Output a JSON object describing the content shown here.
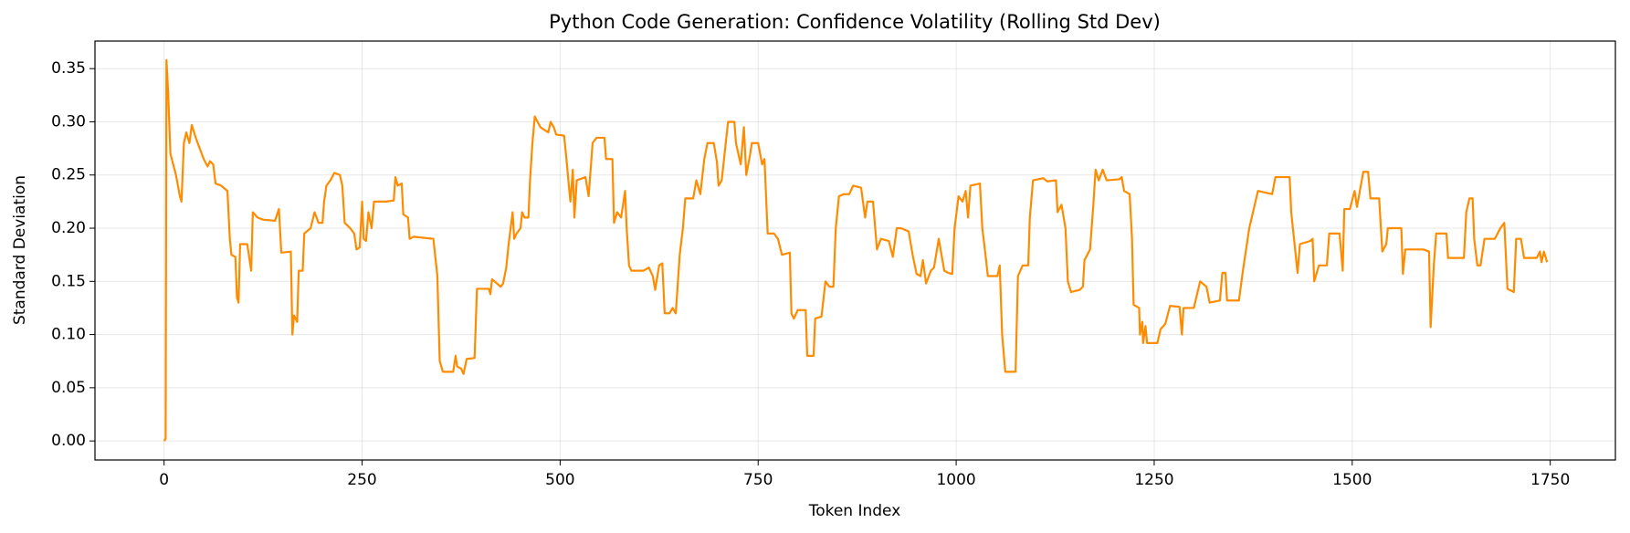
{
  "chart_data": {
    "type": "line",
    "title": "Python Code Generation: Confidence Volatility (Rolling Std Dev)",
    "x_label": "Token Index",
    "y_label": "Standard Deviation",
    "color": "#ff8c00",
    "grid": true,
    "xlim": [
      -87.25,
      1832.25
    ],
    "ylim": [
      -0.0179,
      0.3759
    ],
    "xticks": [
      0,
      250,
      500,
      750,
      1000,
      1250,
      1500,
      1750
    ],
    "yticks": [
      {
        "value": 0,
        "label": "0.00"
      },
      0.05,
      {
        "value": 0.1,
        "label": "0.10"
      },
      0.15,
      {
        "value": 0.2,
        "label": "0.20"
      },
      0.25,
      {
        "value": 0.3,
        "label": "0.30"
      },
      0.35
    ],
    "x": [
      0,
      2,
      3,
      5,
      8,
      15,
      20,
      22,
      25,
      28,
      32,
      35,
      40,
      45,
      50,
      55,
      58,
      62,
      65,
      72,
      80,
      83,
      85,
      90,
      92,
      94,
      96,
      105,
      110,
      112,
      118,
      125,
      140,
      145,
      148,
      160,
      162,
      164,
      168,
      170,
      175,
      177,
      185,
      190,
      195,
      200,
      202,
      205,
      210,
      215,
      222,
      225,
      228,
      235,
      240,
      243,
      247,
      250,
      252,
      255,
      258,
      262,
      265,
      280,
      290,
      292,
      295,
      300,
      302,
      308,
      310,
      315,
      340,
      345,
      348,
      352,
      365,
      368,
      370,
      375,
      378,
      382,
      392,
      395,
      410,
      412,
      414,
      425,
      428,
      432,
      435,
      440,
      442,
      445,
      450,
      452,
      455,
      460,
      462,
      465,
      468,
      475,
      485,
      488,
      492,
      495,
      505,
      508,
      511,
      513,
      516,
      518,
      521,
      532,
      536,
      541,
      546,
      556,
      558,
      566,
      568,
      572,
      577,
      582,
      584,
      587,
      590,
      605,
      612,
      617,
      620,
      625,
      629,
      632,
      638,
      642,
      646,
      651,
      655,
      658,
      668,
      672,
      677,
      682,
      686,
      694,
      698,
      700,
      704,
      712,
      720,
      722,
      728,
      732,
      735,
      740,
      742,
      750,
      755,
      758,
      762,
      770,
      775,
      780,
      790,
      792,
      795,
      800,
      810,
      812,
      820,
      822,
      830,
      835,
      840,
      845,
      848,
      852,
      858,
      865,
      870,
      880,
      885,
      888,
      895,
      900,
      905,
      915,
      920,
      925,
      930,
      940,
      945,
      950,
      955,
      958,
      962,
      968,
      972,
      978,
      985,
      990,
      995,
      998,
      1003,
      1008,
      1012,
      1015,
      1018,
      1030,
      1033,
      1037,
      1040,
      1052,
      1055,
      1058,
      1062,
      1075,
      1078,
      1084,
      1091,
      1093,
      1097,
      1110,
      1115,
      1126,
      1128,
      1133,
      1138,
      1141,
      1145,
      1156,
      1160,
      1162,
      1169,
      1173,
      1176,
      1180,
      1185,
      1190,
      1206,
      1209,
      1212,
      1219,
      1222,
      1224,
      1231,
      1232,
      1235,
      1236,
      1239,
      1241,
      1254,
      1258,
      1264,
      1270,
      1282,
      1285,
      1287,
      1300,
      1308,
      1316,
      1320,
      1333,
      1336,
      1340,
      1342,
      1357,
      1362,
      1370,
      1381,
      1399,
      1403,
      1421,
      1423,
      1431,
      1434,
      1447,
      1450,
      1452,
      1458,
      1468,
      1471,
      1484,
      1488,
      1490,
      1497,
      1503,
      1506,
      1514,
      1520,
      1523,
      1534,
      1538,
      1543,
      1545,
      1562,
      1564,
      1567,
      1590,
      1597,
      1599,
      1603,
      1606,
      1619,
      1621,
      1641,
      1644,
      1648,
      1652,
      1654,
      1658,
      1662,
      1667,
      1680,
      1687,
      1692,
      1696,
      1704,
      1707,
      1713,
      1717,
      1733,
      1737,
      1739,
      1742,
      1746
    ],
    "values": [
      0,
      0.002,
      0.358,
      0.33,
      0.27,
      0.25,
      0.23,
      0.225,
      0.28,
      0.29,
      0.28,
      0.297,
      0.285,
      0.275,
      0.265,
      0.258,
      0.263,
      0.26,
      0.242,
      0.24,
      0.235,
      0.19,
      0.175,
      0.173,
      0.135,
      0.13,
      0.185,
      0.185,
      0.16,
      0.215,
      0.21,
      0.208,
      0.207,
      0.218,
      0.177,
      0.178,
      0.1,
      0.118,
      0.112,
      0.16,
      0.16,
      0.195,
      0.2,
      0.215,
      0.205,
      0.205,
      0.225,
      0.24,
      0.245,
      0.252,
      0.25,
      0.24,
      0.205,
      0.2,
      0.195,
      0.18,
      0.182,
      0.225,
      0.19,
      0.188,
      0.215,
      0.2,
      0.225,
      0.225,
      0.226,
      0.248,
      0.24,
      0.242,
      0.213,
      0.21,
      0.19,
      0.192,
      0.19,
      0.155,
      0.075,
      0.065,
      0.065,
      0.08,
      0.07,
      0.068,
      0.063,
      0.077,
      0.078,
      0.143,
      0.143,
      0.138,
      0.152,
      0.145,
      0.148,
      0.163,
      0.185,
      0.215,
      0.19,
      0.195,
      0.2,
      0.215,
      0.21,
      0.21,
      0.245,
      0.28,
      0.305,
      0.295,
      0.29,
      0.3,
      0.295,
      0.288,
      0.287,
      0.265,
      0.24,
      0.225,
      0.255,
      0.21,
      0.245,
      0.248,
      0.23,
      0.28,
      0.285,
      0.285,
      0.265,
      0.265,
      0.205,
      0.215,
      0.21,
      0.235,
      0.2,
      0.165,
      0.16,
      0.16,
      0.163,
      0.155,
      0.142,
      0.165,
      0.167,
      0.12,
      0.12,
      0.125,
      0.12,
      0.175,
      0.2,
      0.228,
      0.228,
      0.245,
      0.232,
      0.265,
      0.28,
      0.28,
      0.262,
      0.24,
      0.245,
      0.3,
      0.3,
      0.28,
      0.26,
      0.295,
      0.25,
      0.27,
      0.28,
      0.28,
      0.26,
      0.265,
      0.195,
      0.195,
      0.19,
      0.175,
      0.177,
      0.12,
      0.115,
      0.123,
      0.123,
      0.08,
      0.08,
      0.115,
      0.117,
      0.15,
      0.145,
      0.145,
      0.2,
      0.23,
      0.232,
      0.232,
      0.24,
      0.238,
      0.21,
      0.225,
      0.225,
      0.18,
      0.19,
      0.188,
      0.173,
      0.2,
      0.2,
      0.197,
      0.175,
      0.157,
      0.155,
      0.17,
      0.148,
      0.16,
      0.163,
      0.19,
      0.16,
      0.158,
      0.157,
      0.2,
      0.23,
      0.225,
      0.235,
      0.21,
      0.24,
      0.242,
      0.2,
      0.175,
      0.155,
      0.155,
      0.165,
      0.1,
      0.065,
      0.065,
      0.155,
      0.165,
      0.165,
      0.21,
      0.245,
      0.247,
      0.244,
      0.245,
      0.215,
      0.222,
      0.2,
      0.15,
      0.14,
      0.142,
      0.145,
      0.17,
      0.18,
      0.22,
      0.255,
      0.245,
      0.255,
      0.245,
      0.246,
      0.248,
      0.235,
      0.232,
      0.19,
      0.128,
      0.125,
      0.1,
      0.112,
      0.092,
      0.108,
      0.092,
      0.092,
      0.105,
      0.11,
      0.127,
      0.126,
      0.1,
      0.125,
      0.125,
      0.15,
      0.145,
      0.13,
      0.132,
      0.158,
      0.158,
      0.132,
      0.132,
      0.16,
      0.2,
      0.235,
      0.232,
      0.248,
      0.248,
      0.215,
      0.158,
      0.185,
      0.188,
      0.19,
      0.15,
      0.165,
      0.165,
      0.195,
      0.195,
      0.16,
      0.218,
      0.218,
      0.235,
      0.22,
      0.253,
      0.253,
      0.228,
      0.228,
      0.178,
      0.185,
      0.2,
      0.2,
      0.157,
      0.18,
      0.18,
      0.178,
      0.107,
      0.165,
      0.195,
      0.195,
      0.172,
      0.172,
      0.215,
      0.228,
      0.228,
      0.19,
      0.165,
      0.165,
      0.19,
      0.19,
      0.2,
      0.205,
      0.143,
      0.14,
      0.19,
      0.19,
      0.172,
      0.172,
      0.178,
      0.168,
      0.178,
      0.168
    ]
  }
}
